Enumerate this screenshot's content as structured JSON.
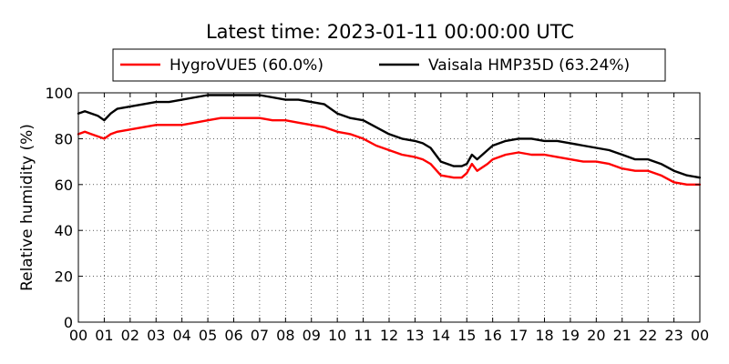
{
  "chart_data": {
    "type": "line",
    "title": "Latest time: 2023-01-11 00:00:00 UTC",
    "xlabel": "",
    "ylabel": "Relative humidity (%)",
    "xlim": [
      0,
      24
    ],
    "ylim": [
      0,
      100
    ],
    "x_tick_labels": [
      "00",
      "01",
      "02",
      "03",
      "04",
      "05",
      "06",
      "07",
      "08",
      "09",
      "10",
      "11",
      "12",
      "13",
      "14",
      "15",
      "16",
      "17",
      "18",
      "19",
      "20",
      "21",
      "22",
      "23",
      "00"
    ],
    "y_ticks": [
      0,
      20,
      40,
      60,
      80,
      100
    ],
    "grid": true,
    "legend_position": "top-center",
    "series": [
      {
        "name": "HygroVUE5 (60.0%)",
        "color": "#ff0000",
        "x": [
          0,
          0.25,
          0.5,
          0.75,
          1,
          1.25,
          1.5,
          2,
          2.5,
          3,
          3.5,
          4,
          4.5,
          5,
          5.5,
          6,
          6.5,
          7,
          7.5,
          8,
          8.5,
          9,
          9.5,
          10,
          10.5,
          11,
          11.5,
          12,
          12.5,
          13,
          13.3,
          13.6,
          14,
          14.5,
          14.8,
          15,
          15.2,
          15.4,
          15.8,
          16,
          16.5,
          17,
          17.5,
          18,
          18.5,
          19,
          19.5,
          20,
          20.5,
          21,
          21.5,
          22,
          22.5,
          23,
          23.5,
          24
        ],
        "y": [
          82,
          83,
          82,
          81,
          80,
          82,
          83,
          84,
          85,
          86,
          86,
          86,
          87,
          88,
          89,
          89,
          89,
          89,
          88,
          88,
          87,
          86,
          85,
          83,
          82,
          80,
          77,
          75,
          73,
          72,
          71,
          69,
          64,
          63,
          63,
          65,
          69,
          66,
          69,
          71,
          73,
          74,
          73,
          73,
          72,
          71,
          70,
          70,
          69,
          67,
          66,
          66,
          64,
          61,
          60,
          60
        ]
      },
      {
        "name": "Vaisala HMP35D (63.24%)",
        "color": "#000000",
        "x": [
          0,
          0.25,
          0.5,
          0.75,
          1,
          1.25,
          1.5,
          2,
          2.5,
          3,
          3.5,
          4,
          4.5,
          5,
          5.5,
          6,
          6.5,
          7,
          7.5,
          8,
          8.5,
          9,
          9.5,
          10,
          10.5,
          11,
          11.5,
          12,
          12.5,
          13,
          13.3,
          13.6,
          14,
          14.5,
          14.8,
          15,
          15.2,
          15.4,
          15.8,
          16,
          16.5,
          17,
          17.5,
          18,
          18.5,
          19,
          19.5,
          20,
          20.5,
          21,
          21.5,
          22,
          22.5,
          23,
          23.5,
          24
        ],
        "y": [
          91,
          92,
          91,
          90,
          88,
          91,
          93,
          94,
          95,
          96,
          96,
          97,
          98,
          99,
          99,
          99,
          99,
          99,
          98,
          97,
          97,
          96,
          95,
          91,
          89,
          88,
          85,
          82,
          80,
          79,
          78,
          76,
          70,
          68,
          68,
          69,
          73,
          71,
          75,
          77,
          79,
          80,
          80,
          79,
          79,
          78,
          77,
          76,
          75,
          73,
          71,
          71,
          69,
          66,
          64,
          63
        ]
      }
    ]
  }
}
